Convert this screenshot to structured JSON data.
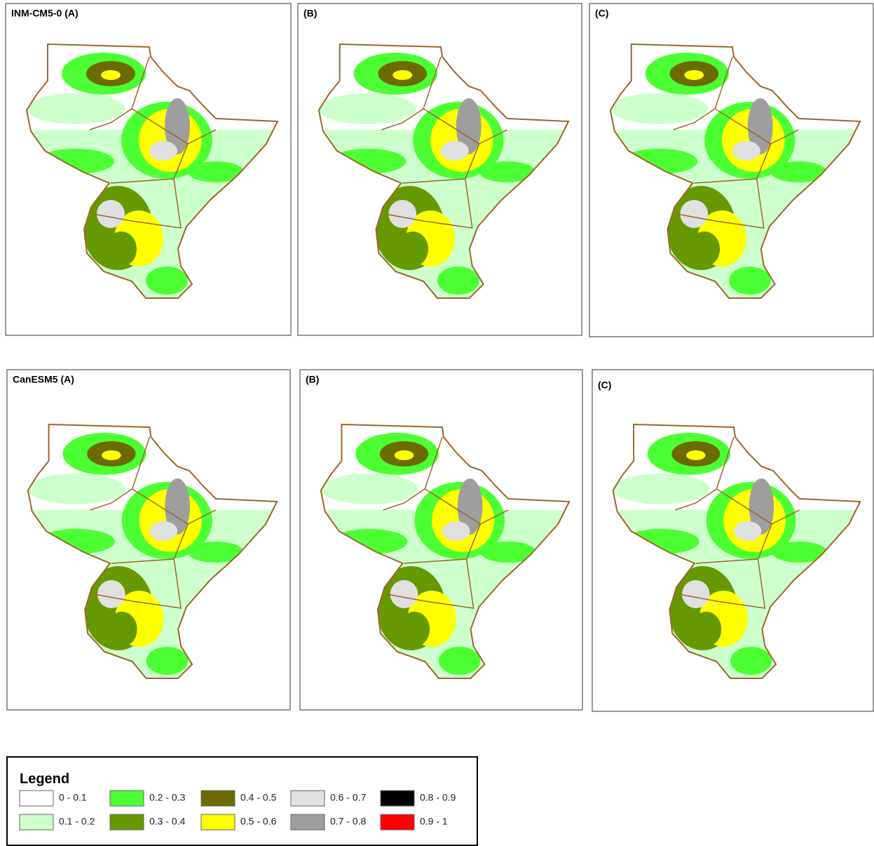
{
  "panels": [
    {
      "label": "INM-CM5-0 (A)"
    },
    {
      "label": "(B)"
    },
    {
      "label": "(C)"
    },
    {
      "label": "CanESM5 (A)"
    },
    {
      "label": "(B)"
    },
    {
      "label": "(C)"
    }
  ],
  "legend": {
    "title": "Legend",
    "items": [
      {
        "label": "0 - 0.1",
        "color": "#ffffff"
      },
      {
        "label": "0.1 - 0.2",
        "color": "#ccffcc"
      },
      {
        "label": "0.2 - 0.3",
        "color": "#4cff33"
      },
      {
        "label": "0.3 - 0.4",
        "color": "#669900"
      },
      {
        "label": "0.4 - 0.5",
        "color": "#6b6b00"
      },
      {
        "label": "0.5 - 0.6",
        "color": "#ffff00"
      },
      {
        "label": "0.6 - 0.7",
        "color": "#e0e0e0"
      },
      {
        "label": "0.7 - 0.8",
        "color": "#9e9e9e"
      },
      {
        "label": "0.8 - 0.9",
        "color": "#000000"
      },
      {
        "label": "0.9 - 1",
        "color": "#ff0000"
      }
    ]
  }
}
